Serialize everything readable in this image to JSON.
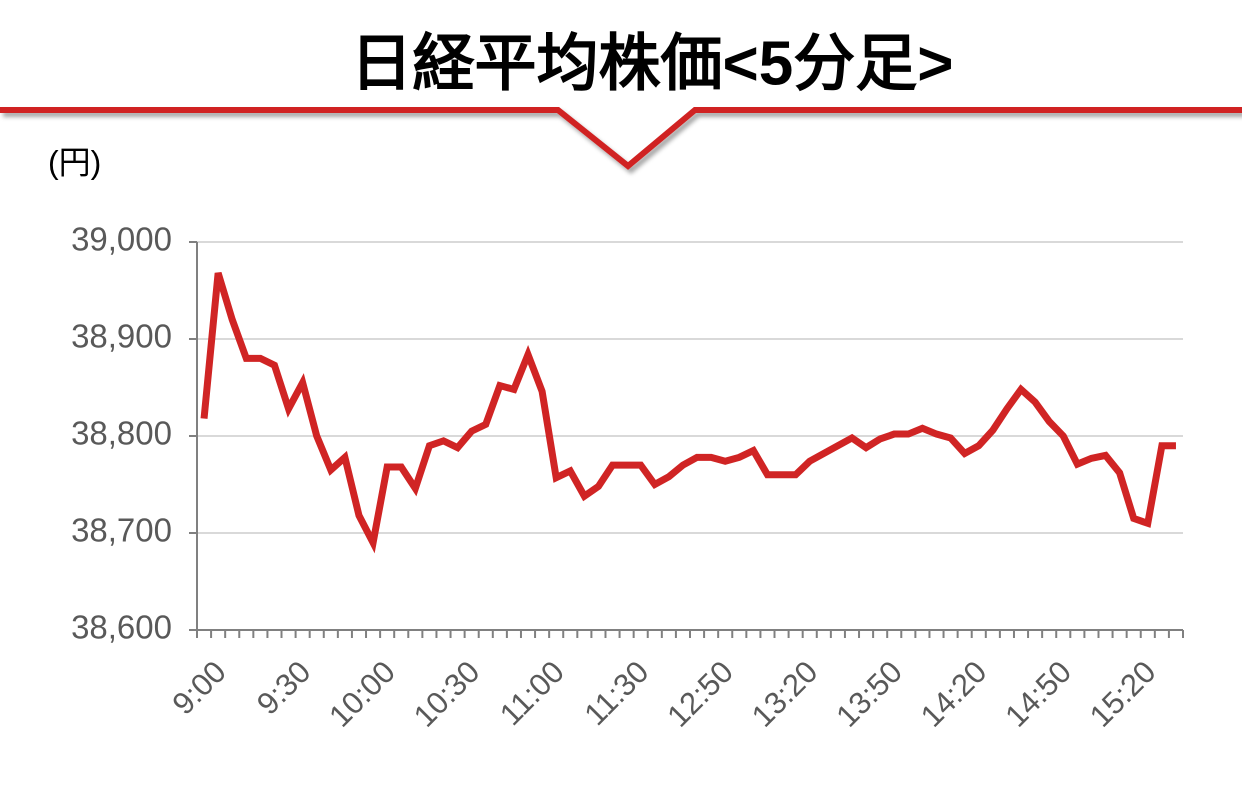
{
  "chart_data": {
    "type": "line",
    "title": "日経平均株価<5分足>",
    "y_label": "(円)",
    "categories": [
      "9:00",
      null,
      null,
      null,
      null,
      null,
      "9:30",
      null,
      null,
      null,
      null,
      null,
      "10:00",
      null,
      null,
      null,
      null,
      null,
      "10:30",
      null,
      null,
      null,
      null,
      null,
      "11:00",
      null,
      null,
      null,
      null,
      null,
      "11:30",
      null,
      null,
      null,
      null,
      null,
      "12:50",
      null,
      null,
      null,
      null,
      null,
      "13:20",
      null,
      null,
      null,
      null,
      null,
      "13:50",
      null,
      null,
      null,
      null,
      null,
      "14:20",
      null,
      null,
      null,
      null,
      null,
      "14:50",
      null,
      null,
      null,
      null,
      null,
      "15:20",
      null,
      null,
      null
    ],
    "series": [
      {
        "name": "日経平均株価",
        "color": "#d02424",
        "values": [
          38818,
          38968,
          38920,
          38880,
          38880,
          38873,
          38828,
          38855,
          38800,
          38765,
          38778,
          38718,
          38690,
          38768,
          38768,
          38746,
          38790,
          38795,
          38788,
          38805,
          38812,
          38852,
          38848,
          38884,
          38846,
          38757,
          38764,
          38738,
          38748,
          38770,
          38770,
          38770,
          38750,
          38758,
          38770,
          38778,
          38778,
          38774,
          38778,
          38785,
          38760,
          38760,
          38760,
          38774,
          38782,
          38790,
          38798,
          38788,
          38797,
          38802,
          38802,
          38808,
          38802,
          38798,
          38782,
          38790,
          38806,
          38828,
          38848,
          38835,
          38815,
          38800,
          38771,
          38777,
          38780,
          38762,
          38715,
          38710,
          38790,
          38790
        ]
      }
    ],
    "ylim": [
      38600,
      39000
    ],
    "yticks": [
      {
        "value": 38600,
        "label": "38,600"
      },
      {
        "value": 38700,
        "label": "38,700"
      },
      {
        "value": 38800,
        "label": "38,800"
      },
      {
        "value": 38900,
        "label": "38,900"
      },
      {
        "value": 39000,
        "label": "39,000"
      }
    ],
    "grid": true
  }
}
